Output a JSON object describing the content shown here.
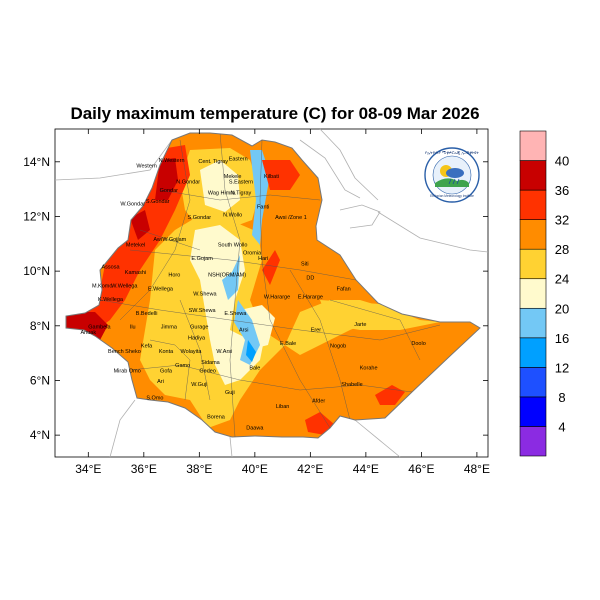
{
  "title": "Daily maximum temperature (C) for 08-09 Mar 2026",
  "map": {
    "lon_range": [
      32.8,
      48.4
    ],
    "lat_range": [
      3.2,
      15.2
    ],
    "x_ticks": [
      {
        "lon": 34,
        "label": "34°E"
      },
      {
        "lon": 36,
        "label": "36°E"
      },
      {
        "lon": 38,
        "label": "38°E"
      },
      {
        "lon": 40,
        "label": "40°E"
      },
      {
        "lon": 42,
        "label": "42°E"
      },
      {
        "lon": 44,
        "label": "44°E"
      },
      {
        "lon": 46,
        "label": "46°E"
      },
      {
        "lon": 48,
        "label": "48°E"
      }
    ],
    "y_ticks": [
      {
        "lat": 4,
        "label": "4°N"
      },
      {
        "lat": 6,
        "label": "6°N"
      },
      {
        "lat": 8,
        "label": "8°N"
      },
      {
        "lat": 10,
        "label": "10°N"
      },
      {
        "lat": 12,
        "label": "12°N"
      },
      {
        "lat": 14,
        "label": "14°N"
      }
    ],
    "region_labels": [
      {
        "text": "N.Western",
        "lon": 37.0,
        "lat": 14.0
      },
      {
        "text": "Cent. Tigray",
        "lon": 38.5,
        "lat": 13.95
      },
      {
        "text": "Eastern",
        "lon": 39.4,
        "lat": 14.05
      },
      {
        "text": "Western",
        "lon": 36.1,
        "lat": 13.8
      },
      {
        "text": "Mekele",
        "lon": 39.2,
        "lat": 13.4
      },
      {
        "text": "N.Gondar",
        "lon": 37.6,
        "lat": 13.2
      },
      {
        "text": "S.Eastern",
        "lon": 39.5,
        "lat": 13.2
      },
      {
        "text": "Kilbati",
        "lon": 40.6,
        "lat": 13.4
      },
      {
        "text": "Gondar",
        "lon": 36.9,
        "lat": 12.9
      },
      {
        "text": "Wag Himra",
        "lon": 38.8,
        "lat": 12.8
      },
      {
        "text": "N.Tigray",
        "lon": 39.5,
        "lat": 12.8
      },
      {
        "text": "S.Gondar",
        "lon": 36.5,
        "lat": 12.5
      },
      {
        "text": "Fanti",
        "lon": 40.3,
        "lat": 12.3
      },
      {
        "text": "W.Gondar",
        "lon": 35.6,
        "lat": 12.4
      },
      {
        "text": "S.Gondar",
        "lon": 38.0,
        "lat": 11.9
      },
      {
        "text": "N.Wollo",
        "lon": 39.2,
        "lat": 12.0
      },
      {
        "text": "Awsi /Zone 1",
        "lon": 41.3,
        "lat": 11.9
      },
      {
        "text": "Awi",
        "lon": 36.5,
        "lat": 11.1
      },
      {
        "text": "W.Gojjam",
        "lon": 37.1,
        "lat": 11.1
      },
      {
        "text": "Metekel",
        "lon": 35.7,
        "lat": 10.9
      },
      {
        "text": "South Wollo",
        "lon": 39.2,
        "lat": 10.9
      },
      {
        "text": "Oromia",
        "lon": 39.9,
        "lat": 10.6
      },
      {
        "text": "Hari",
        "lon": 40.3,
        "lat": 10.4
      },
      {
        "text": "E.Gojam",
        "lon": 38.1,
        "lat": 10.4
      },
      {
        "text": "Siti",
        "lon": 41.8,
        "lat": 10.2
      },
      {
        "text": "Assosa",
        "lon": 34.8,
        "lat": 10.1
      },
      {
        "text": "Kamashi",
        "lon": 35.7,
        "lat": 9.9
      },
      {
        "text": "Horo",
        "lon": 37.1,
        "lat": 9.8
      },
      {
        "text": "NSH(ORM/AM)",
        "lon": 39.0,
        "lat": 9.8
      },
      {
        "text": "DD",
        "lon": 42.0,
        "lat": 9.7
      },
      {
        "text": "M.Komo",
        "lon": 34.5,
        "lat": 9.4
      },
      {
        "text": "W.Wellega",
        "lon": 35.3,
        "lat": 9.4
      },
      {
        "text": "E.Wellega",
        "lon": 36.6,
        "lat": 9.3
      },
      {
        "text": "Fafan",
        "lon": 43.2,
        "lat": 9.3
      },
      {
        "text": "W.Shewa",
        "lon": 38.2,
        "lat": 9.1
      },
      {
        "text": "W.Hararge",
        "lon": 40.8,
        "lat": 9.0
      },
      {
        "text": "E.Hararge",
        "lon": 42.0,
        "lat": 9.0
      },
      {
        "text": "K.Wellega",
        "lon": 34.8,
        "lat": 8.9
      },
      {
        "text": "SW.Shewa",
        "lon": 38.1,
        "lat": 8.5
      },
      {
        "text": "E.Shewa",
        "lon": 39.3,
        "lat": 8.4
      },
      {
        "text": "B.Bedelli",
        "lon": 36.1,
        "lat": 8.4
      },
      {
        "text": "Jarte",
        "lon": 43.8,
        "lat": 8.0
      },
      {
        "text": "Jimma",
        "lon": 36.9,
        "lat": 7.9
      },
      {
        "text": "Erer",
        "lon": 42.2,
        "lat": 7.8
      },
      {
        "text": "Gurage",
        "lon": 38.0,
        "lat": 7.9
      },
      {
        "text": "Arsi",
        "lon": 39.6,
        "lat": 7.8
      },
      {
        "text": "Ilu",
        "lon": 35.6,
        "lat": 7.9
      },
      {
        "text": "Gambela",
        "lon": 34.4,
        "lat": 7.9
      },
      {
        "text": "Anuak",
        "lon": 34.0,
        "lat": 7.7
      },
      {
        "text": "Hadiya",
        "lon": 37.9,
        "lat": 7.5
      },
      {
        "text": "Kefa",
        "lon": 36.1,
        "lat": 7.2
      },
      {
        "text": "Bench Sheko",
        "lon": 35.3,
        "lat": 7.0
      },
      {
        "text": "Konta",
        "lon": 36.8,
        "lat": 7.0
      },
      {
        "text": "Wolayita",
        "lon": 37.7,
        "lat": 7.0
      },
      {
        "text": "W.Arsi",
        "lon": 38.9,
        "lat": 7.0
      },
      {
        "text": "E.Bale",
        "lon": 41.2,
        "lat": 7.3
      },
      {
        "text": "Nogob",
        "lon": 43.0,
        "lat": 7.2
      },
      {
        "text": "Doolo",
        "lon": 45.9,
        "lat": 7.3
      },
      {
        "text": "Sidama",
        "lon": 38.4,
        "lat": 6.6
      },
      {
        "text": "Mirab Omo",
        "lon": 35.4,
        "lat": 6.3
      },
      {
        "text": "Gofa",
        "lon": 36.8,
        "lat": 6.3
      },
      {
        "text": "Gamo",
        "lon": 37.4,
        "lat": 6.5
      },
      {
        "text": "Gedeo",
        "lon": 38.3,
        "lat": 6.3
      },
      {
        "text": "Bale",
        "lon": 40.0,
        "lat": 6.4
      },
      {
        "text": "Korahe",
        "lon": 44.1,
        "lat": 6.4
      },
      {
        "text": "Shabelle",
        "lon": 43.5,
        "lat": 5.8
      },
      {
        "text": "Ari",
        "lon": 36.6,
        "lat": 5.9
      },
      {
        "text": "W.Guji",
        "lon": 38.0,
        "lat": 5.8
      },
      {
        "text": "S.Omo",
        "lon": 36.4,
        "lat": 5.3
      },
      {
        "text": "Guji",
        "lon": 39.1,
        "lat": 5.5
      },
      {
        "text": "Afder",
        "lon": 42.3,
        "lat": 5.2
      },
      {
        "text": "Liban",
        "lon": 41.0,
        "lat": 5.0
      },
      {
        "text": "Borena",
        "lon": 38.6,
        "lat": 4.6
      },
      {
        "text": "Daawa",
        "lon": 40.0,
        "lat": 4.2
      }
    ]
  },
  "colorbar": {
    "colors": [
      "#8b2be2",
      "#0000ff",
      "#1e50ff",
      "#00a0ff",
      "#73c8f5",
      "#fffacd",
      "#ffd232",
      "#ff8c00",
      "#ff3200",
      "#c80000",
      "#ffb4b4"
    ],
    "labels": [
      "4",
      "8",
      "12",
      "16",
      "20",
      "24",
      "28",
      "32",
      "36",
      "40"
    ]
  },
  "logo": {
    "top_text": "የኢትዮጵያ ሚቲዎሮሎጂ ኢንስቲትዩት",
    "bottom_text": "Ethiopian Meteorology Institute"
  }
}
